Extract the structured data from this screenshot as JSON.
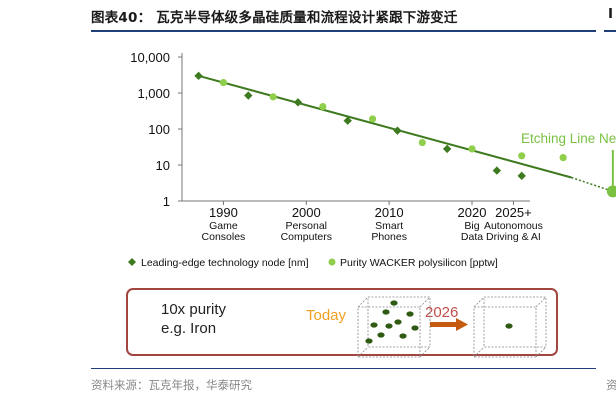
{
  "figure": {
    "title": "图表40： 瓦克半导体级多晶硅质量和流程设计紧跟下游变迁",
    "source": "资料来源：瓦克年报，华泰研究",
    "next_title_fragment": "I",
    "next_source_fragment": "资"
  },
  "colors": {
    "node_marker": "#3e7a1f",
    "polysilicon_marker": "#8fcf4b",
    "trendline": "#3e7a1f",
    "annotation": "#7ac142",
    "today_label": "#f0a020",
    "year_2026_label": "#c0504d",
    "box_border": "#a0453f",
    "arrow": "#c55a11",
    "rule": "#1f3f78"
  },
  "chart_data": {
    "type": "scatter",
    "y_scale": "log",
    "ylim": [
      1,
      10000
    ],
    "yticks": [
      "10,000",
      "1,000",
      "100",
      "10",
      "1"
    ],
    "yticks_values": [
      10000,
      1000,
      100,
      10,
      1
    ],
    "xlim": [
      1985,
      2027
    ],
    "xticks": [
      {
        "value": 1990,
        "label": "1990",
        "sub1": "Game",
        "sub2": "Consoles"
      },
      {
        "value": 2000,
        "label": "2000",
        "sub1": "Personal",
        "sub2": "Computers"
      },
      {
        "value": 2010,
        "label": "2010",
        "sub1": "Smart",
        "sub2": "Phones"
      },
      {
        "value": 2020,
        "label": "2020",
        "sub1": "Big",
        "sub2": "Data"
      },
      {
        "value": 2025,
        "label": "2025+",
        "sub1": "Autonomous",
        "sub2": "Driving & AI"
      }
    ],
    "series": [
      {
        "name": "Leading-edge technology node [nm]",
        "marker": "diamond",
        "x": [
          1987,
          1993,
          1999,
          2005,
          2011,
          2017,
          2023,
          2026
        ],
        "y": [
          3000,
          850,
          550,
          170,
          90,
          28,
          7,
          5
        ]
      },
      {
        "name": "Purity WACKER polysilicon [pptw]",
        "marker": "circle",
        "x": [
          1990,
          1996,
          2002,
          2008,
          2014,
          2020,
          2026,
          2031
        ],
        "y": [
          1950,
          780,
          420,
          190,
          42,
          28,
          18,
          16
        ]
      }
    ],
    "projection_point": {
      "x": 2037,
      "y": 1.85
    },
    "trendline": {
      "x": [
        1987,
        2032
      ],
      "y": [
        3000,
        4.5
      ]
    },
    "annotation": "Etching Line Next",
    "inset": {
      "left_line1": "10x purity",
      "left_line2": "e.g. Iron",
      "today_label": "Today",
      "future_label": "2026",
      "today_dots": 10,
      "future_dots": 1
    }
  }
}
